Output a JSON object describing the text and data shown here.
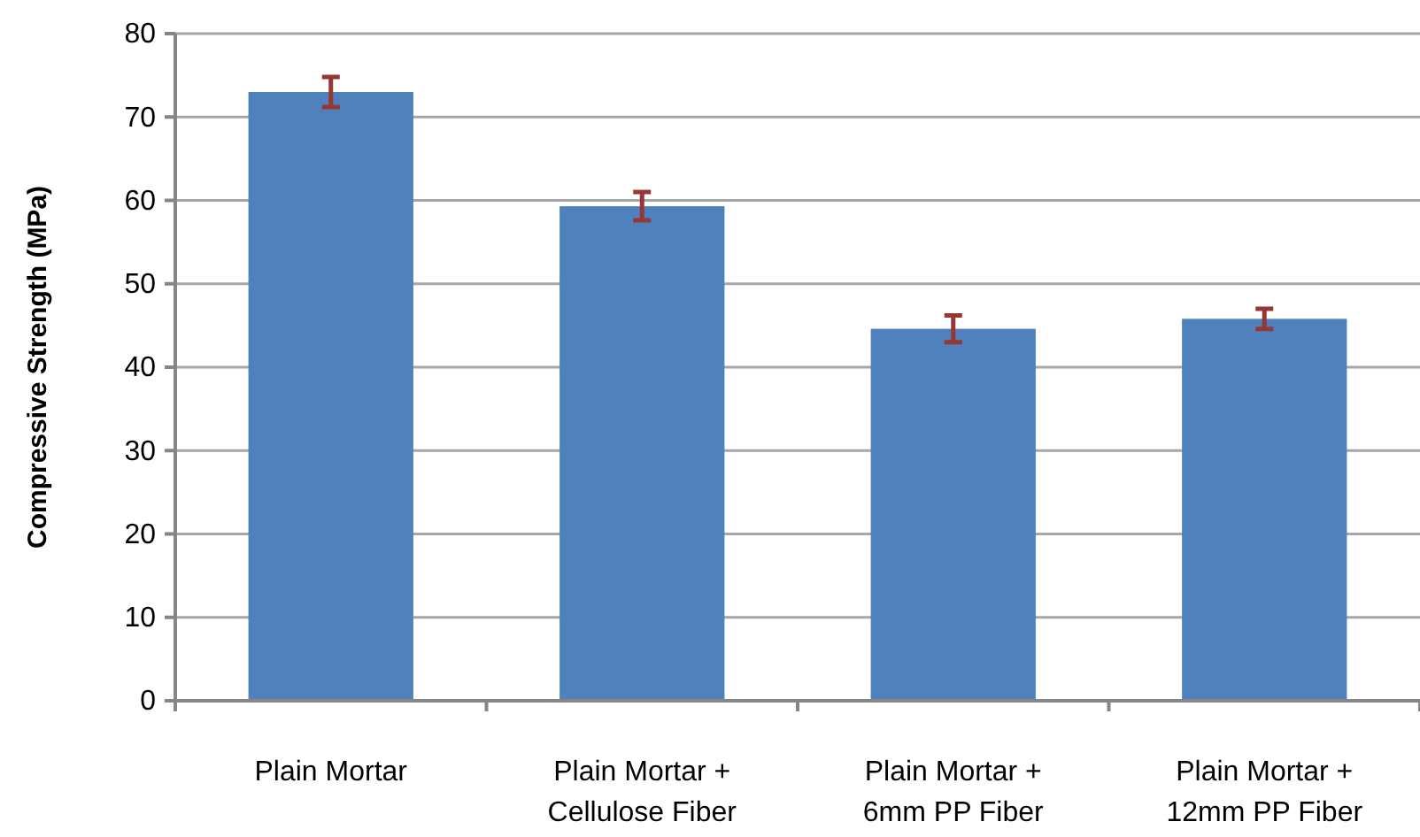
{
  "chart_data": {
    "type": "bar",
    "ylabel": "Compressive Strength (MPa)",
    "categories": [
      "Plain Mortar",
      "Plain Mortar + Cellulose Fiber",
      "Plain Mortar + 6mm PP Fiber",
      "Plain Mortar + 12mm PP Fiber"
    ],
    "values": [
      73,
      59.3,
      44.6,
      45.8
    ],
    "errors": [
      1.8,
      1.7,
      1.6,
      1.2
    ],
    "color": "#4f81bd",
    "ylim": [
      0,
      80
    ],
    "yticks": [
      0,
      10,
      20,
      30,
      40,
      50,
      60,
      70,
      80
    ],
    "grid": "y"
  }
}
